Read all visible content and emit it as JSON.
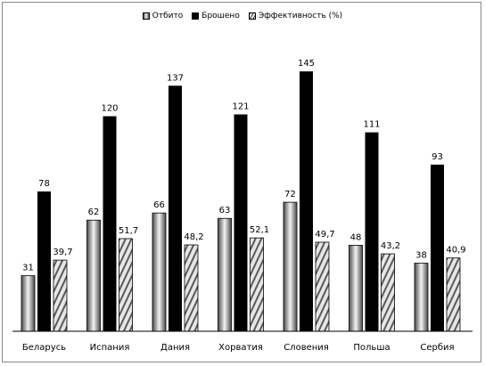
{
  "chart_data": {
    "type": "bar",
    "title": "",
    "xlabel": "",
    "ylabel": "",
    "ylim": [
      0,
      160
    ],
    "grid": false,
    "legend_position": "top",
    "categories": [
      "Беларусь",
      "Испания",
      "Дания",
      "Хорватия",
      "Словения",
      "Польша",
      "Сербия"
    ],
    "series": [
      {
        "name": "Отбито",
        "values": [
          31,
          62,
          66,
          63,
          72,
          48,
          38
        ],
        "labels": [
          "31",
          "62",
          "66",
          "63",
          "72",
          "48",
          "38"
        ],
        "color": "#9a9a9a"
      },
      {
        "name": "Брошено",
        "values": [
          78,
          120,
          137,
          121,
          145,
          111,
          93
        ],
        "labels": [
          "78",
          "120",
          "137",
          "121",
          "145",
          "111",
          "93"
        ],
        "color": "#000000"
      },
      {
        "name": "Эффективность (%)",
        "values": [
          39.7,
          51.7,
          48.2,
          52.1,
          49.7,
          43.2,
          40.9
        ],
        "labels": [
          "39,7",
          "51,7",
          "48,2",
          "52,1",
          "49,7",
          "43,2",
          "40,9"
        ],
        "color": "#bdbdbd"
      }
    ]
  }
}
